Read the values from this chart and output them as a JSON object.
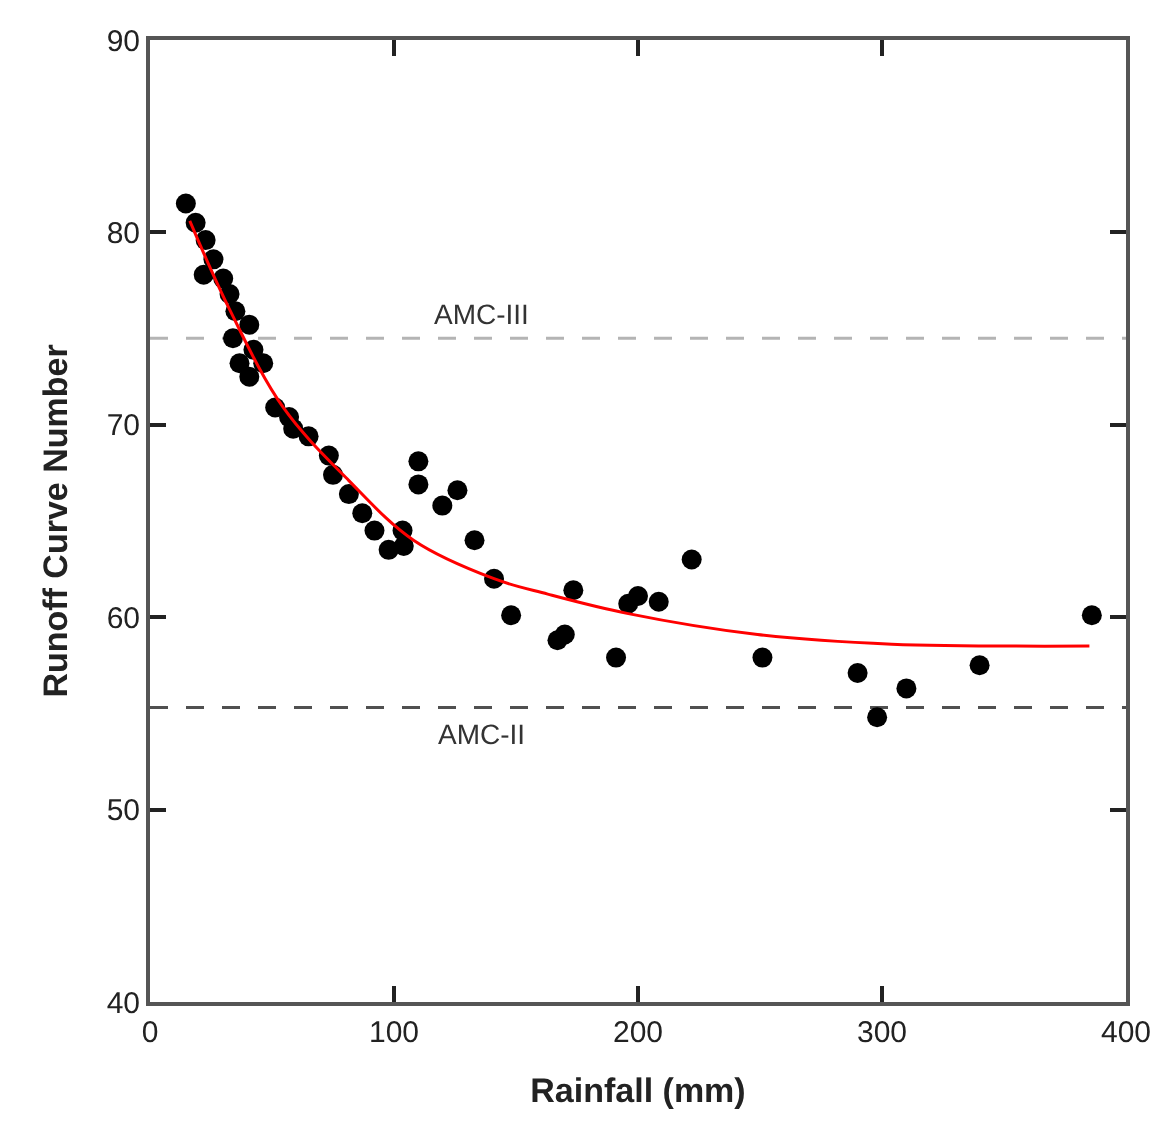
{
  "chart_data": {
    "type": "scatter",
    "xlabel": "Rainfall (mm)",
    "ylabel": "Runoff Curve Number",
    "xlim": [
      0,
      400
    ],
    "xticks": [
      0,
      100,
      200,
      300,
      400
    ],
    "ylim": [
      40,
      90
    ],
    "yticks": [
      40,
      50,
      60,
      70,
      80,
      90
    ],
    "grid": false,
    "legend": false,
    "series": [
      {
        "marker": "circle",
        "color": "#000000",
        "x": [
          14.7,
          18.7,
          22.8,
          22,
          26,
          30,
          32.6,
          35,
          34,
          40.7,
          42.4,
          36.7,
          40.7,
          46.4,
          51.3,
          57,
          58.7,
          65,
          73.3,
          75,
          81.5,
          87,
          92,
          97.8,
          103.5,
          104,
          110,
          110,
          119.8,
          126,
          133,
          141,
          148,
          167,
          170,
          173.5,
          191,
          196,
          200,
          208.5,
          222,
          251,
          290,
          298,
          310,
          340,
          386
        ],
        "values": [
          81.5,
          80.5,
          79.6,
          77.8,
          78.6,
          77.6,
          76.8,
          75.9,
          74.5,
          75.2,
          73.9,
          73.2,
          72.5,
          73.2,
          70.9,
          70.4,
          69.8,
          69.4,
          68.4,
          67.4,
          66.4,
          65.4,
          64.5,
          63.5,
          64.5,
          63.7,
          68.1,
          66.9,
          65.8,
          66.6,
          64,
          62,
          60.1,
          58.8,
          59.1,
          61.4,
          57.9,
          60.7,
          61.1,
          60.8,
          63,
          57.9,
          57.1,
          54.8,
          56.3,
          57.5,
          60.1
        ]
      },
      {
        "type": "line",
        "marker": "none",
        "color": "#ff0000",
        "x": [
          16.3,
          32.6,
          54.6,
          81.5,
          108,
          141,
          163,
          195.5,
          249,
          304,
          385
        ],
        "values": [
          80.6,
          76,
          70.9,
          67.1,
          64,
          62,
          61.2,
          60.2,
          59.1,
          58.6,
          58.5
        ]
      }
    ],
    "ref_lines": [
      {
        "axis": "y",
        "value": 74.5,
        "label": "AMC-III",
        "color": "#b4b4b4",
        "line_style": "dashed"
      },
      {
        "axis": "y",
        "value": 55.3,
        "label": "AMC-II",
        "color": "#505050",
        "line_style": "dashed"
      }
    ]
  }
}
